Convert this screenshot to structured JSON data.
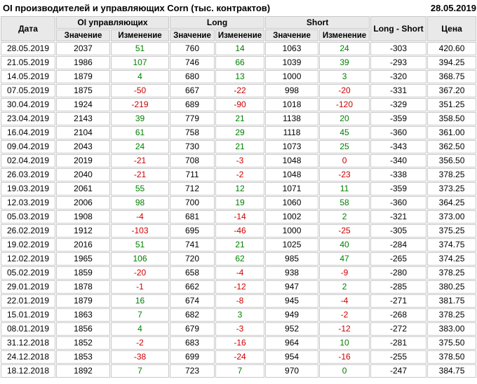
{
  "page": {
    "title": "OI производителей и управляющих Corn (тыс. контрактов)",
    "report_date": "28.05.2019"
  },
  "colors": {
    "positive": "#008000",
    "negative": "#cc0000",
    "header_bg": "#e9e9e9",
    "cell_border": "#c8c8c8",
    "background": "#ffffff",
    "text": "#000000"
  },
  "table": {
    "columns": {
      "date": "Дата",
      "value": "Значение",
      "change": "Изменение",
      "long_short": "Long - Short",
      "price": "Цена"
    },
    "groups": [
      {
        "label": "OI управляющих"
      },
      {
        "label": "Long"
      },
      {
        "label": "Short"
      }
    ],
    "rows": [
      {
        "cells": [
          "28.05.2019",
          "2037",
          "51",
          "760",
          "14",
          "1063",
          "24",
          "-303",
          "420.60"
        ],
        "change_colors": [
          "pos",
          "pos",
          "pos"
        ]
      },
      {
        "cells": [
          "21.05.2019",
          "1986",
          "107",
          "746",
          "66",
          "1039",
          "39",
          "-293",
          "394.25"
        ],
        "change_colors": [
          "pos",
          "pos",
          "pos"
        ]
      },
      {
        "cells": [
          "14.05.2019",
          "1879",
          "4",
          "680",
          "13",
          "1000",
          "3",
          "-320",
          "368.75"
        ],
        "change_colors": [
          "pos",
          "pos",
          "pos"
        ]
      },
      {
        "cells": [
          "07.05.2019",
          "1875",
          "-50",
          "667",
          "-22",
          "998",
          "-20",
          "-331",
          "367.20"
        ],
        "change_colors": [
          "neg",
          "neg",
          "neg"
        ]
      },
      {
        "cells": [
          "30.04.2019",
          "1924",
          "-219",
          "689",
          "-90",
          "1018",
          "-120",
          "-329",
          "351.25"
        ],
        "change_colors": [
          "neg",
          "neg",
          "neg"
        ]
      },
      {
        "cells": [
          "23.04.2019",
          "2143",
          "39",
          "779",
          "21",
          "1138",
          "20",
          "-359",
          "358.50"
        ],
        "change_colors": [
          "pos",
          "pos",
          "pos"
        ]
      },
      {
        "cells": [
          "16.04.2019",
          "2104",
          "61",
          "758",
          "29",
          "1118",
          "45",
          "-360",
          "361.00"
        ],
        "change_colors": [
          "pos",
          "pos",
          "pos"
        ]
      },
      {
        "cells": [
          "09.04.2019",
          "2043",
          "24",
          "730",
          "21",
          "1073",
          "25",
          "-343",
          "362.50"
        ],
        "change_colors": [
          "pos",
          "pos",
          "pos"
        ]
      },
      {
        "cells": [
          "02.04.2019",
          "2019",
          "-21",
          "708",
          "-3",
          "1048",
          "0",
          "-340",
          "356.50"
        ],
        "change_colors": [
          "neg",
          "neg",
          "neg"
        ]
      },
      {
        "cells": [
          "26.03.2019",
          "2040",
          "-21",
          "711",
          "-2",
          "1048",
          "-23",
          "-338",
          "378.25"
        ],
        "change_colors": [
          "neg",
          "neg",
          "neg"
        ]
      },
      {
        "cells": [
          "19.03.2019",
          "2061",
          "55",
          "712",
          "12",
          "1071",
          "11",
          "-359",
          "373.25"
        ],
        "change_colors": [
          "pos",
          "pos",
          "pos"
        ]
      },
      {
        "cells": [
          "12.03.2019",
          "2006",
          "98",
          "700",
          "19",
          "1060",
          "58",
          "-360",
          "364.25"
        ],
        "change_colors": [
          "pos",
          "pos",
          "pos"
        ]
      },
      {
        "cells": [
          "05.03.2019",
          "1908",
          "-4",
          "681",
          "-14",
          "1002",
          "2",
          "-321",
          "373.00"
        ],
        "change_colors": [
          "neg",
          "neg",
          "pos"
        ]
      },
      {
        "cells": [
          "26.02.2019",
          "1912",
          "-103",
          "695",
          "-46",
          "1000",
          "-25",
          "-305",
          "375.25"
        ],
        "change_colors": [
          "neg",
          "neg",
          "neg"
        ]
      },
      {
        "cells": [
          "19.02.2019",
          "2016",
          "51",
          "741",
          "21",
          "1025",
          "40",
          "-284",
          "374.75"
        ],
        "change_colors": [
          "pos",
          "pos",
          "pos"
        ]
      },
      {
        "cells": [
          "12.02.2019",
          "1965",
          "106",
          "720",
          "62",
          "985",
          "47",
          "-265",
          "374.25"
        ],
        "change_colors": [
          "pos",
          "pos",
          "pos"
        ]
      },
      {
        "cells": [
          "05.02.2019",
          "1859",
          "-20",
          "658",
          "-4",
          "938",
          "-9",
          "-280",
          "378.25"
        ],
        "change_colors": [
          "neg",
          "neg",
          "neg"
        ]
      },
      {
        "cells": [
          "29.01.2019",
          "1878",
          "-1",
          "662",
          "-12",
          "947",
          "2",
          "-285",
          "380.25"
        ],
        "change_colors": [
          "neg",
          "neg",
          "pos"
        ]
      },
      {
        "cells": [
          "22.01.2019",
          "1879",
          "16",
          "674",
          "-8",
          "945",
          "-4",
          "-271",
          "381.75"
        ],
        "change_colors": [
          "pos",
          "neg",
          "neg"
        ]
      },
      {
        "cells": [
          "15.01.2019",
          "1863",
          "7",
          "682",
          "3",
          "949",
          "-2",
          "-268",
          "378.25"
        ],
        "change_colors": [
          "pos",
          "pos",
          "neg"
        ]
      },
      {
        "cells": [
          "08.01.2019",
          "1856",
          "4",
          "679",
          "-3",
          "952",
          "-12",
          "-272",
          "383.00"
        ],
        "change_colors": [
          "pos",
          "neg",
          "neg"
        ]
      },
      {
        "cells": [
          "31.12.2018",
          "1852",
          "-2",
          "683",
          "-16",
          "964",
          "10",
          "-281",
          "375.50"
        ],
        "change_colors": [
          "neg",
          "neg",
          "pos"
        ]
      },
      {
        "cells": [
          "24.12.2018",
          "1853",
          "-38",
          "699",
          "-24",
          "954",
          "-16",
          "-255",
          "378.50"
        ],
        "change_colors": [
          "neg",
          "neg",
          "neg"
        ]
      },
      {
        "cells": [
          "18.12.2018",
          "1892",
          "7",
          "723",
          "7",
          "970",
          "0",
          "-247",
          "384.75"
        ],
        "change_colors": [
          "pos",
          "pos",
          "pos"
        ]
      }
    ]
  }
}
